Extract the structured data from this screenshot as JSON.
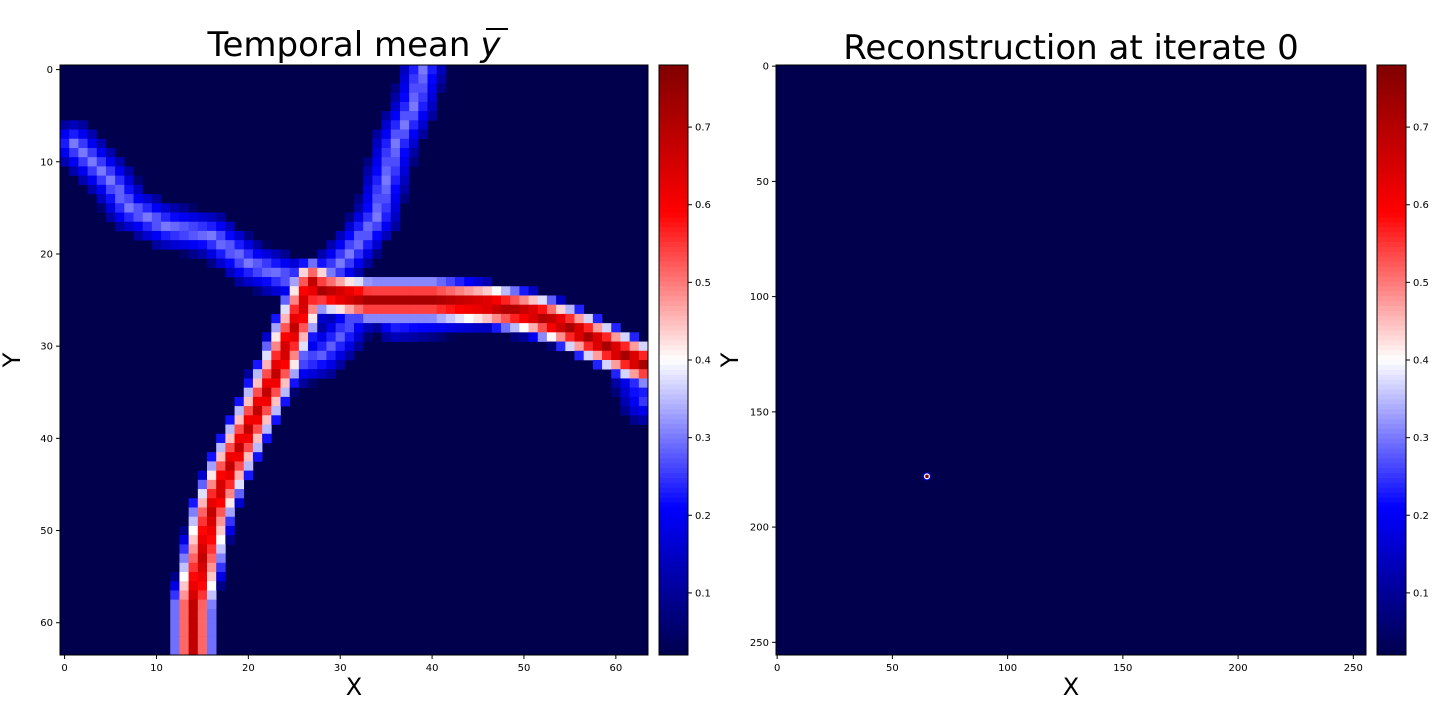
{
  "chart_data": [
    {
      "type": "heatmap",
      "title": "Temporal mean",
      "title_symbol": "y",
      "xlabel": "X",
      "ylabel": "Y",
      "grid_size": 64,
      "xlim": [
        0,
        63
      ],
      "ylim": [
        63,
        0
      ],
      "xticks": [
        "0",
        "10",
        "20",
        "30",
        "40",
        "50",
        "60"
      ],
      "yticks": [
        "0",
        "10",
        "20",
        "30",
        "40",
        "50",
        "60"
      ],
      "colormap": "seismic",
      "colorbar_ticks": [
        "0.1",
        "0.2",
        "0.3",
        "0.4",
        "0.5",
        "0.6",
        "0.7"
      ],
      "colorbar_range": [
        0.02,
        0.78
      ],
      "vessels": [
        {
          "path": [
            [
              1,
              8
            ],
            [
              5,
              12
            ],
            [
              7,
              15
            ],
            [
              11,
              17
            ],
            [
              16,
              18
            ],
            [
              20,
              21
            ],
            [
              24,
              22.5
            ],
            [
              27,
              23.5
            ]
          ],
          "peak": 0.3
        },
        {
          "path": [
            [
              39,
              0
            ],
            [
              38,
              4
            ],
            [
              36,
              8
            ],
            [
              35,
              12
            ],
            [
              34,
              16
            ],
            [
              31,
              20
            ],
            [
              28,
              23
            ]
          ],
          "peak": 0.3
        },
        {
          "path": [
            [
              27,
              23
            ],
            [
              25,
              28
            ],
            [
              23,
              33
            ],
            [
              21,
              37
            ],
            [
              18,
              43
            ],
            [
              16,
              48
            ],
            [
              15,
              53
            ],
            [
              14,
              58
            ],
            [
              14,
              63
            ]
          ],
          "peak": 0.68
        },
        {
          "path": [
            [
              28,
              24
            ],
            [
              33,
              25
            ],
            [
              40,
              25
            ],
            [
              46,
              25.5
            ],
            [
              51,
              26.5
            ],
            [
              55,
              28
            ],
            [
              59,
              30
            ],
            [
              63,
              32
            ]
          ],
          "peak": 0.72
        },
        {
          "path": [
            [
              32,
              26
            ],
            [
              30,
              29
            ],
            [
              28,
              31
            ],
            [
              25,
              32
            ],
            [
              22,
              34
            ]
          ],
          "peak": 0.28
        },
        {
          "path": [
            [
              61,
              31
            ],
            [
              63,
              36
            ]
          ],
          "peak": 0.25
        },
        {
          "path": [
            [
              36,
              27
            ],
            [
              46,
              26
            ],
            [
              52,
              27
            ]
          ],
          "peak": 0.3
        }
      ]
    },
    {
      "type": "heatmap",
      "title": "Reconstruction at iterate 0",
      "xlabel": "X",
      "ylabel": "Y",
      "grid_size": 256,
      "xlim": [
        0,
        255
      ],
      "ylim": [
        255,
        0
      ],
      "xticks": [
        "0",
        "50",
        "100",
        "150",
        "200",
        "250"
      ],
      "yticks": [
        "0",
        "50",
        "100",
        "150",
        "200",
        "250"
      ],
      "colormap": "seismic",
      "colorbar_ticks": [
        "0.1",
        "0.2",
        "0.3",
        "0.4",
        "0.5",
        "0.6",
        "0.7"
      ],
      "colorbar_range": [
        0.02,
        0.78
      ],
      "points": [
        {
          "x": 65.5,
          "y": 178.5,
          "value": 0.78
        }
      ]
    }
  ]
}
